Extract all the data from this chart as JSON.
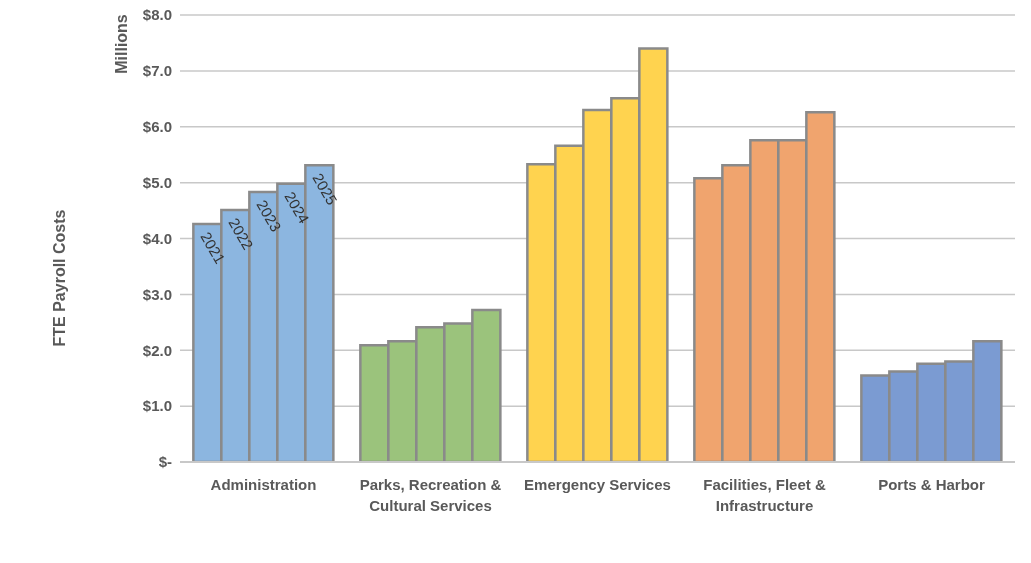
{
  "chart_data": {
    "type": "bar",
    "ylabel": "FTE Payroll Costs",
    "annotations": [
      "Millions"
    ],
    "categories": [
      "Administration",
      "Parks, Recreation & Cultural Services",
      "Emergency Services",
      "Facilities, Fleet & Infrastructure",
      "Ports & Harbor"
    ],
    "series": [
      {
        "name": "2021",
        "colors": [
          "#8cb6e0",
          "#9bc37c",
          "#ffd34f",
          "#f0a46e",
          "#7b9bd2"
        ],
        "values": [
          4.26,
          2.09,
          5.33,
          5.08,
          1.55
        ]
      },
      {
        "name": "2022",
        "colors": [
          "#8cb6e0",
          "#9bc37c",
          "#ffd34f",
          "#f0a46e",
          "#7b9bd2"
        ],
        "values": [
          4.51,
          2.16,
          5.66,
          5.31,
          1.62
        ]
      },
      {
        "name": "2023",
        "colors": [
          "#8cb6e0",
          "#9bc37c",
          "#ffd34f",
          "#f0a46e",
          "#7b9bd2"
        ],
        "values": [
          4.83,
          2.41,
          6.3,
          5.76,
          1.76
        ]
      },
      {
        "name": "2024",
        "colors": [
          "#8cb6e0",
          "#9bc37c",
          "#ffd34f",
          "#f0a46e",
          "#7b9bd2"
        ],
        "values": [
          4.98,
          2.48,
          6.51,
          5.76,
          1.8
        ]
      },
      {
        "name": "2025",
        "colors": [
          "#8cb6e0",
          "#9bc37c",
          "#ffd34f",
          "#f0a46e",
          "#7b9bd2"
        ],
        "values": [
          5.31,
          2.72,
          7.4,
          6.26,
          2.16
        ]
      }
    ],
    "ylim": [
      0,
      8
    ],
    "yticks": [
      {
        "value": 0,
        "label": "$-"
      },
      {
        "value": 1,
        "label": "$1.0"
      },
      {
        "value": 2,
        "label": "$2.0"
      },
      {
        "value": 3,
        "label": "$3.0"
      },
      {
        "value": 4,
        "label": "$4.0"
      },
      {
        "value": 5,
        "label": "$5.0"
      },
      {
        "value": 6,
        "label": "$6.0"
      },
      {
        "value": 7,
        "label": "$7.0"
      },
      {
        "value": 8,
        "label": "$8.0"
      }
    ],
    "grid": "y"
  }
}
